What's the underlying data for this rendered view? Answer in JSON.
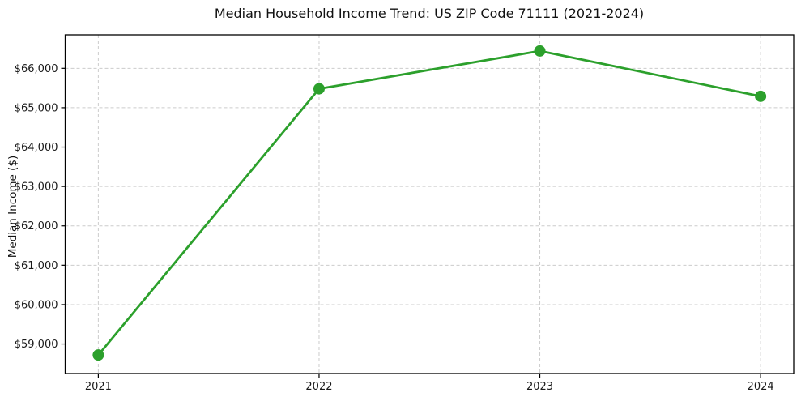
{
  "figure": {
    "title": "Median Household Income Trend: US ZIP Code 71111 (2021-2024)"
  },
  "chart_data": {
    "type": "line",
    "title": "Median Household Income Trend: US ZIP Code 71111 (2021-2024)",
    "xlabel": "",
    "ylabel": "Median Income ($)",
    "x": [
      2021,
      2022,
      2023,
      2024
    ],
    "x_tick_labels": [
      "2021",
      "2022",
      "2023",
      "2024"
    ],
    "series": [
      {
        "name": "Median Household Income",
        "values": [
          58720,
          65480,
          66440,
          65290
        ]
      }
    ],
    "y_ticks": [
      59000,
      60000,
      61000,
      62000,
      63000,
      64000,
      65000,
      66000
    ],
    "y_tick_labels": [
      "$59,000",
      "$60,000",
      "$61,000",
      "$62,000",
      "$63,000",
      "$64,000",
      "$65,000",
      "$66,000"
    ],
    "xlim": [
      2020.85,
      2024.15
    ],
    "ylim": [
      58250,
      66850
    ],
    "grid": true,
    "legend": false,
    "marker": "circle",
    "line_color": "#2ca02c",
    "grid_color": "#cccccc",
    "tick_color": "#000000",
    "text_color": "#1a1a1a",
    "background_color": "#ffffff"
  }
}
